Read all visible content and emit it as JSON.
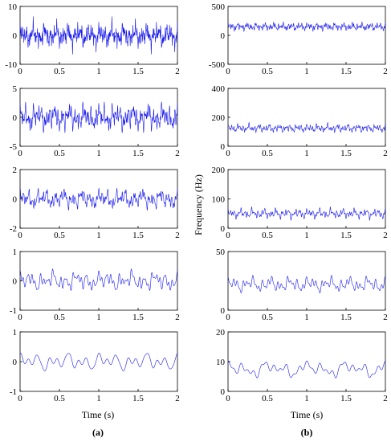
{
  "chart_data": [
    {
      "type": "line",
      "column": "a",
      "row": 1,
      "xlim": [
        0,
        2
      ],
      "ylim": [
        -10,
        10
      ],
      "xticks": [
        "0",
        "0.5",
        "1",
        "1.5",
        "2"
      ],
      "yticks": [
        "10",
        "0",
        "-10"
      ],
      "signal": {
        "amplitude": 3.5,
        "components": [
          [
            7,
            0.35,
            0.3
          ],
          [
            13,
            0.3,
            1.2
          ],
          [
            23,
            0.25,
            2.1
          ],
          [
            37,
            0.3,
            0.7
          ],
          [
            53,
            0.25,
            2.7
          ],
          [
            71,
            0.2,
            1.6
          ],
          [
            97,
            0.25,
            0.4
          ],
          [
            131,
            0.2,
            2.4
          ]
        ]
      }
    },
    {
      "type": "line",
      "column": "a",
      "row": 2,
      "xlim": [
        0,
        2
      ],
      "ylim": [
        -5,
        5
      ],
      "xticks": [
        "0",
        "0.5",
        "1",
        "1.5",
        "2"
      ],
      "yticks": [
        "5",
        "0",
        "-5"
      ],
      "signal": {
        "amplitude": 2.0,
        "components": [
          [
            5,
            0.3,
            0.9
          ],
          [
            11,
            0.3,
            2.2
          ],
          [
            19,
            0.3,
            0.2
          ],
          [
            29,
            0.3,
            1.5
          ],
          [
            41,
            0.25,
            2.9
          ],
          [
            59,
            0.25,
            0.6
          ],
          [
            83,
            0.2,
            1.9
          ]
        ]
      }
    },
    {
      "type": "line",
      "column": "a",
      "row": 3,
      "xlim": [
        0,
        2
      ],
      "ylim": [
        -2,
        2
      ],
      "xticks": [
        "0",
        "0.5",
        "1",
        "1.5",
        "2"
      ],
      "yticks": [
        "2",
        "0",
        "-2"
      ],
      "signal": {
        "amplitude": 0.6,
        "components": [
          [
            4,
            0.3,
            0.5
          ],
          [
            9,
            0.35,
            1.4
          ],
          [
            17,
            0.3,
            2.6
          ],
          [
            27,
            0.3,
            0.9
          ],
          [
            43,
            0.25,
            2.0
          ],
          [
            61,
            0.2,
            0.3
          ]
        ]
      }
    },
    {
      "type": "line",
      "column": "a",
      "row": 4,
      "xlim": [
        0,
        2
      ],
      "ylim": [
        -1,
        1
      ],
      "xticks": [
        "0",
        "0.5",
        "1",
        "1.5",
        "2"
      ],
      "yticks": [
        "1",
        "0",
        "-1"
      ],
      "signal": {
        "amplitude": 0.3,
        "components": [
          [
            3,
            0.3,
            0.3
          ],
          [
            7,
            0.4,
            1.8
          ],
          [
            12,
            0.35,
            0.8
          ],
          [
            19,
            0.3,
            2.5
          ],
          [
            27,
            0.25,
            1.1
          ]
        ]
      }
    },
    {
      "type": "line",
      "column": "a",
      "row": 5,
      "xlim": [
        0,
        2
      ],
      "ylim": [
        -1,
        1
      ],
      "xticks": [
        "0",
        "0.5",
        "1",
        "1.5",
        "2"
      ],
      "yticks": [
        "1",
        "0",
        "-1"
      ],
      "signal": {
        "amplitude": 0.3,
        "components": [
          [
            2,
            0.25,
            0.4
          ],
          [
            5,
            0.5,
            1.2
          ],
          [
            8,
            0.35,
            2.3
          ],
          [
            11,
            0.2,
            0.6
          ]
        ]
      }
    },
    {
      "type": "line",
      "column": "b",
      "row": 1,
      "xlim": [
        0,
        2
      ],
      "ylim": [
        -500,
        500
      ],
      "xticks": [
        "0",
        "0.5",
        "1",
        "1.5",
        "2"
      ],
      "yticks": [
        "500",
        "0",
        "-500"
      ],
      "signal": {
        "offset": 150,
        "amplitude": 70,
        "components": [
          [
            9,
            0.3,
            0.2
          ],
          [
            17,
            0.3,
            1.5
          ],
          [
            31,
            0.25,
            2.4
          ],
          [
            47,
            0.3,
            0.8
          ],
          [
            67,
            0.25,
            1.9
          ]
        ]
      }
    },
    {
      "type": "line",
      "column": "b",
      "row": 2,
      "xlim": [
        0,
        2
      ],
      "ylim": [
        0,
        400
      ],
      "xticks": [
        "0",
        "0.5",
        "1",
        "1.5",
        "2"
      ],
      "yticks": [
        "400",
        "200",
        "0"
      ],
      "signal": {
        "offset": 125,
        "amplitude": 30,
        "components": [
          [
            8,
            0.3,
            0.7
          ],
          [
            15,
            0.3,
            2.0
          ],
          [
            27,
            0.3,
            0.4
          ],
          [
            41,
            0.25,
            1.6
          ],
          [
            63,
            0.2,
            2.8
          ]
        ]
      }
    },
    {
      "type": "line",
      "column": "b",
      "row": 3,
      "xlim": [
        0,
        2
      ],
      "ylim": [
        0,
        200
      ],
      "xticks": [
        "0",
        "0.5",
        "1",
        "1.5",
        "2"
      ],
      "yticks": [
        "200",
        "100",
        "0"
      ],
      "signal": {
        "offset": 50,
        "amplitude": 18,
        "components": [
          [
            7,
            0.3,
            0.3
          ],
          [
            13,
            0.3,
            1.7
          ],
          [
            23,
            0.3,
            2.5
          ],
          [
            37,
            0.25,
            0.9
          ],
          [
            53,
            0.2,
            2.1
          ]
        ]
      }
    },
    {
      "type": "line",
      "column": "b",
      "row": 4,
      "xlim": [
        0,
        2
      ],
      "ylim": [
        0,
        50
      ],
      "xticks": [
        "0",
        "0.5",
        "1",
        "1.5",
        "2"
      ],
      "yticks": [
        "50",
        "0"
      ],
      "signal": {
        "offset": 22,
        "amplitude": 7,
        "components": [
          [
            4,
            0.35,
            0.6
          ],
          [
            9,
            0.35,
            2.0
          ],
          [
            16,
            0.3,
            1.1
          ],
          [
            25,
            0.25,
            2.6
          ]
        ]
      }
    },
    {
      "type": "line",
      "column": "b",
      "row": 5,
      "xlim": [
        0,
        2
      ],
      "ylim": [
        0,
        20
      ],
      "xticks": [
        "0",
        "0.5",
        "1",
        "1.5",
        "2"
      ],
      "yticks": [
        "20",
        "10",
        "0"
      ],
      "signal": {
        "offset": 7.5,
        "amplitude": 3,
        "components": [
          [
            2,
            0.35,
            1.0
          ],
          [
            4,
            0.35,
            2.4
          ],
          [
            7,
            0.3,
            0.5
          ],
          [
            12,
            0.25,
            1.8
          ]
        ]
      }
    }
  ],
  "labels": {
    "xlabel_a": "Time (s)",
    "xlabel_b": "Time (s)",
    "ylabel_b": "Frequency (Hz)",
    "sublabel_a": "(a)",
    "sublabel_b": "(b)"
  }
}
